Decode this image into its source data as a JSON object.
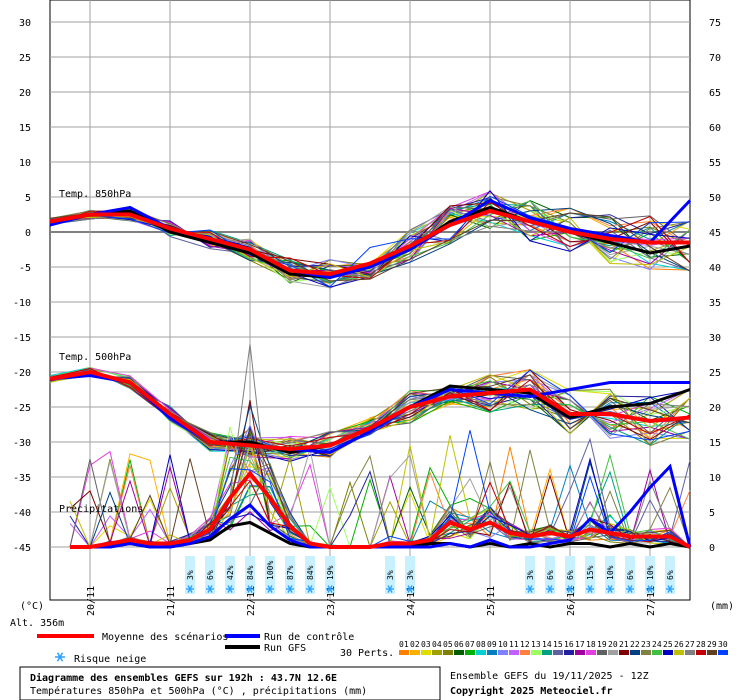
{
  "chart_data": {
    "type": "line",
    "title": "Diagramme des ensembles GEFS sur 192h : 43.7N 12.6E",
    "subtitle": "Températures 850hPa et 500hPa (°C) , précipitations (mm)",
    "run_label": "Ensemble GEFS du 19/11/2025 - 12Z",
    "copyright": "Copyright 2025 Meteociel.fr",
    "left_axis": {
      "unit": "(°C)",
      "min": -45,
      "max": 30,
      "ticks": [
        30,
        25,
        20,
        15,
        10,
        5,
        0,
        -5,
        -10,
        -15,
        -20,
        -25,
        -30,
        -35,
        -40,
        -45
      ]
    },
    "right_axis": {
      "unit": "(mm)",
      "min": 0,
      "max": 75,
      "ticks": [
        75,
        70,
        65,
        60,
        55,
        50,
        45,
        40,
        35,
        30,
        25,
        20,
        15,
        10,
        5,
        0
      ]
    },
    "altitude": "Alt. 356m",
    "x_axis": {
      "start_hour": 0,
      "end_hour": 192,
      "dates": [
        "20/11",
        "21/11",
        "22/11",
        "23/11",
        "24/11",
        "25/11",
        "26/11",
        "27/11"
      ]
    },
    "panel_labels": {
      "t850": "Temp. 850hPa",
      "t500": "Temp. 500hPa",
      "precip": "Précipitations"
    },
    "legend": {
      "mean": "Moyenne des scénarios",
      "control": "Run de contrôle",
      "gfs": "Run GFS",
      "snow": "Risque neige",
      "perts_label": "30 Perts.",
      "pert_numbers": [
        "01",
        "02",
        "03",
        "04",
        "05",
        "06",
        "07",
        "08",
        "09",
        "10",
        "11",
        "12",
        "13",
        "14",
        "15",
        "16",
        "17",
        "18",
        "19",
        "20",
        "21",
        "22",
        "23",
        "24",
        "25",
        "26",
        "27",
        "28",
        "29",
        "30"
      ]
    },
    "colors": {
      "mean": "#ff0000",
      "control": "#0000ff",
      "gfs": "#000000",
      "grid": "#a0a0a0",
      "zero_line": "#808080",
      "snow_bg": "#c8f0ff",
      "perts": [
        "#ff8000",
        "#ffb000",
        "#dddd00",
        "#a0a000",
        "#808000",
        "#006000",
        "#00b000",
        "#00d0d0",
        "#0080c0",
        "#8080ff",
        "#c060ff",
        "#ff8040",
        "#a0ff60",
        "#00a080",
        "#6060a0",
        "#2020a0",
        "#a000a0",
        "#e040e0",
        "#606060",
        "#a0a0a0",
        "#800000",
        "#004080",
        "#808040",
        "#40c040",
        "#0000c0",
        "#c0c000",
        "#808080",
        "#c00000",
        "#604020",
        "#0040ff"
      ]
    },
    "snow_risk": [
      {
        "hour": 42,
        "pct": "3%"
      },
      {
        "hour": 48,
        "pct": "6%"
      },
      {
        "hour": 54,
        "pct": "42%"
      },
      {
        "hour": 60,
        "pct": "84%"
      },
      {
        "hour": 66,
        "pct": "100%"
      },
      {
        "hour": 72,
        "pct": "87%"
      },
      {
        "hour": 78,
        "pct": "84%"
      },
      {
        "hour": 84,
        "pct": "19%"
      },
      {
        "hour": 102,
        "pct": "3%"
      },
      {
        "hour": 108,
        "pct": "3%"
      },
      {
        "hour": 144,
        "pct": "3%"
      },
      {
        "hour": 150,
        "pct": "6%"
      },
      {
        "hour": 156,
        "pct": "6%"
      },
      {
        "hour": 162,
        "pct": "15%"
      },
      {
        "hour": 168,
        "pct": "10%"
      },
      {
        "hour": 174,
        "pct": "6%"
      },
      {
        "hour": 180,
        "pct": "10%"
      },
      {
        "hour": 186,
        "pct": "6%"
      }
    ],
    "series": {
      "t850": {
        "mean": {
          "x": [
            0,
            12,
            24,
            36,
            48,
            60,
            72,
            84,
            96,
            108,
            120,
            132,
            144,
            156,
            168,
            180,
            192
          ],
          "y": [
            1.5,
            2.5,
            2.5,
            0.5,
            -1.0,
            -2.5,
            -5.5,
            -6.0,
            -4.5,
            -2.0,
            1.0,
            3.0,
            1.5,
            0.0,
            -1.0,
            -1.5,
            -1.5
          ]
        },
        "control": {
          "x": [
            0,
            12,
            24,
            36,
            48,
            60,
            72,
            84,
            96,
            108,
            120,
            132,
            144,
            156,
            168,
            180,
            192
          ],
          "y": [
            1.0,
            2.5,
            3.5,
            0.5,
            -1.0,
            -2.5,
            -5.5,
            -6.5,
            -5.0,
            -2.5,
            1.0,
            4.5,
            2.0,
            0.5,
            -0.5,
            -1.5,
            4.5
          ]
        },
        "gfs": {
          "x": [
            0,
            12,
            24,
            36,
            48,
            60,
            72,
            84,
            96,
            108,
            120,
            132,
            144,
            156,
            168,
            180,
            192
          ],
          "y": [
            1.5,
            2.5,
            3.0,
            0.0,
            -1.5,
            -3.0,
            -6.0,
            -6.5,
            -5.0,
            -2.5,
            1.5,
            3.5,
            1.5,
            0.0,
            -1.5,
            -3.0,
            -2.0
          ]
        }
      },
      "t500": {
        "mean": {
          "x": [
            0,
            12,
            24,
            36,
            48,
            60,
            72,
            84,
            96,
            108,
            120,
            132,
            144,
            156,
            168,
            180,
            192
          ],
          "y": [
            -21.0,
            -20.0,
            -21.5,
            -26.0,
            -30.0,
            -30.5,
            -31.0,
            -30.5,
            -28.0,
            -25.0,
            -23.5,
            -23.0,
            -22.5,
            -26.0,
            -26.0,
            -27.0,
            -26.5
          ]
        },
        "control": {
          "x": [
            0,
            12,
            24,
            36,
            48,
            60,
            72,
            84,
            96,
            108,
            120,
            132,
            144,
            156,
            168,
            180,
            192
          ],
          "y": [
            -21.0,
            -20.5,
            -21.5,
            -26.5,
            -30.0,
            -30.5,
            -31.0,
            -31.5,
            -28.5,
            -25.0,
            -22.5,
            -23.0,
            -23.5,
            -22.5,
            -21.5,
            -21.5,
            -21.5
          ]
        },
        "gfs": {
          "x": [
            0,
            12,
            24,
            36,
            48,
            60,
            72,
            84,
            96,
            108,
            120,
            132,
            144,
            156,
            168,
            180,
            192
          ],
          "y": [
            -21.0,
            -20.0,
            -21.5,
            -26.0,
            -30.0,
            -30.0,
            -31.5,
            -30.5,
            -28.0,
            -25.0,
            -22.0,
            -22.5,
            -23.0,
            -26.5,
            -25.0,
            -24.5,
            -22.5
          ]
        }
      },
      "precip": {
        "mean": {
          "x": [
            6,
            12,
            18,
            24,
            30,
            36,
            42,
            48,
            54,
            60,
            66,
            72,
            78,
            84,
            90,
            96,
            102,
            108,
            114,
            120,
            126,
            132,
            138,
            144,
            150,
            156,
            162,
            168,
            174,
            180,
            186,
            192
          ],
          "y": [
            0,
            0,
            0.5,
            1.0,
            0.5,
            0.5,
            1.0,
            2.5,
            7.0,
            10.5,
            7.0,
            3.0,
            0.5,
            0,
            0,
            0,
            0.5,
            0.5,
            1.0,
            3.5,
            2.5,
            3.5,
            2.0,
            1.5,
            2.0,
            1.5,
            2.5,
            2.0,
            1.5,
            1.5,
            1.5,
            0
          ]
        },
        "control": {
          "x": [
            6,
            12,
            18,
            24,
            30,
            36,
            42,
            48,
            54,
            60,
            66,
            72,
            78,
            84,
            90,
            96,
            102,
            108,
            114,
            120,
            126,
            132,
            138,
            144,
            150,
            156,
            162,
            168,
            174,
            180,
            186,
            192
          ],
          "y": [
            0,
            0,
            0,
            0.5,
            0,
            0,
            0.5,
            1.5,
            4.0,
            6.0,
            3.0,
            1.0,
            0,
            0,
            0,
            0,
            0,
            0,
            0,
            0.5,
            0,
            1.0,
            0,
            0,
            0.5,
            1.0,
            4.0,
            2.0,
            5.0,
            8.5,
            11.5,
            0
          ]
        },
        "gfs": {
          "x": [
            6,
            12,
            18,
            24,
            30,
            36,
            42,
            48,
            54,
            60,
            66,
            72,
            78,
            84,
            90,
            96,
            102,
            108,
            114,
            120,
            126,
            132,
            138,
            144,
            150,
            156,
            162,
            168,
            174,
            180,
            186,
            192
          ],
          "y": [
            0,
            0,
            0,
            0.5,
            0,
            0,
            0.5,
            1.0,
            3.0,
            3.5,
            2.0,
            0.5,
            0,
            0,
            0,
            0,
            0,
            0,
            0.5,
            0.5,
            0,
            0.5,
            0,
            0.5,
            0,
            0.5,
            0.5,
            0,
            0.5,
            0,
            0.5,
            0
          ]
        }
      }
    }
  }
}
